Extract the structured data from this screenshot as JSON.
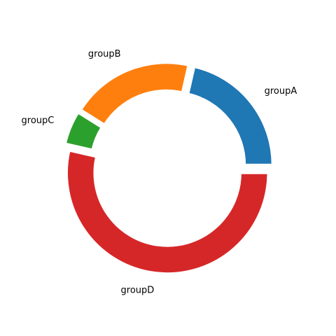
{
  "chart_data": {
    "type": "pie",
    "style": "donut",
    "title": "",
    "categories": [
      "groupA",
      "groupB",
      "groupC",
      "groupD"
    ],
    "values": [
      12,
      11,
      3,
      30
    ],
    "colors": [
      "#1f77b4",
      "#ff7f0e",
      "#2ca02c",
      "#d62728"
    ],
    "start_angle_deg": 0,
    "direction": "counterclockwise",
    "exploded": true,
    "legend": "none"
  }
}
